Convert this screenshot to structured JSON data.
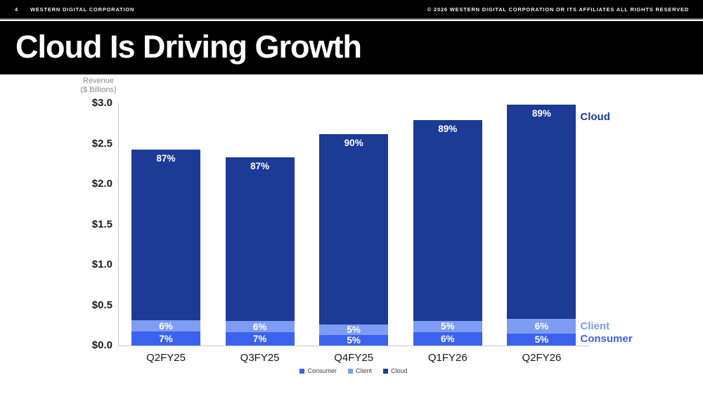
{
  "header": {
    "page_number": "4",
    "company": "WESTERN DIGITAL CORPORATION",
    "copyright": "© 2026 WESTERN DIGITAL CORPORATION OR ITS AFFILIATES  ALL RIGHTS RESERVED"
  },
  "title": "Cloud Is Driving Growth",
  "chart_data": {
    "type": "bar",
    "stacked": true,
    "axis_title_line1": "Revenue",
    "axis_title_line2": "($ Billions)",
    "categories": [
      "Q2FY25",
      "Q3FY25",
      "Q4FY25",
      "Q1FY26",
      "Q2FY26"
    ],
    "totals_billions": [
      2.43,
      2.33,
      2.62,
      2.79,
      2.98
    ],
    "series": [
      {
        "name": "Consumer",
        "color": "#3B62EF",
        "share_pct": [
          7,
          7,
          5,
          6,
          5
        ],
        "labels": [
          "7%",
          "7%",
          "5%",
          "6%",
          "5%"
        ]
      },
      {
        "name": "Client",
        "color": "#7E9DF2",
        "share_pct": [
          6,
          6,
          5,
          5,
          6
        ],
        "labels": [
          "6%",
          "6%",
          "5%",
          "5%",
          "6%"
        ]
      },
      {
        "name": "Cloud",
        "color": "#1C3A96",
        "share_pct": [
          87,
          87,
          90,
          89,
          89
        ],
        "labels": [
          "87%",
          "87%",
          "90%",
          "89%",
          "89%"
        ]
      }
    ],
    "ylim": [
      0,
      3.0
    ],
    "yticks": [
      "$3.0",
      "$2.5",
      "$2.0",
      "$1.5",
      "$1.0",
      "$0.5",
      "$0.0"
    ],
    "grid": false,
    "legend_position": "bottom",
    "legend": [
      "Consumer",
      "Client",
      "Cloud"
    ],
    "right_labels": [
      {
        "text": "Cloud",
        "series": "Cloud",
        "color": "#1C3A96"
      },
      {
        "text": "Client",
        "series": "Client",
        "color": "#7E9DF2"
      },
      {
        "text": "Consumer",
        "series": "Consumer",
        "color": "#3B62EF"
      }
    ]
  }
}
